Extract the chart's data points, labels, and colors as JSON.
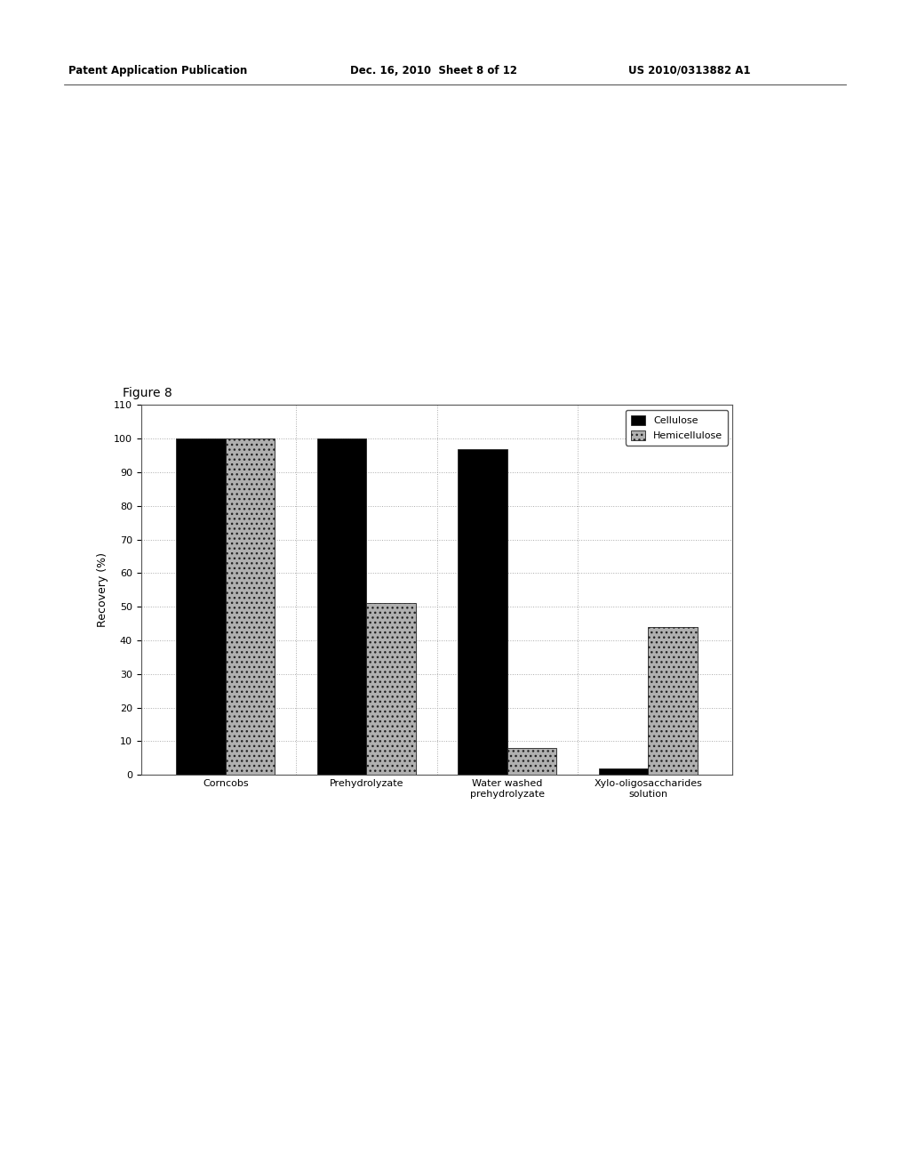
{
  "figure_label": "Figure 8",
  "categories": [
    "Corncobs",
    "Prehydrolyzate",
    "Water washed\nprehydrolyzate",
    "Xylo-oligosaccharides\nsolution"
  ],
  "cellulose_values": [
    100,
    100,
    97,
    2
  ],
  "hemicellulose_values": [
    100,
    51,
    8,
    44
  ],
  "cellulose_color": "#000000",
  "hemicellulose_color": "#b0b0b0",
  "hemicellulose_hatch": "...",
  "ylabel": "Recovery (%)",
  "ylim": [
    0,
    110
  ],
  "yticks": [
    0,
    10,
    20,
    30,
    40,
    50,
    60,
    70,
    80,
    90,
    100,
    110
  ],
  "legend_labels": [
    "Cellulose",
    "Hemicellulose"
  ],
  "bar_width": 0.35,
  "background_color": "#ffffff",
  "plot_bg_color": "#ffffff",
  "grid_color": "#aaaaaa",
  "border_color": "#555555",
  "figure_label_fontsize": 10,
  "axis_label_fontsize": 9,
  "tick_fontsize": 8,
  "legend_fontsize": 8,
  "header_left": "Patent Application Publication",
  "header_mid": "Dec. 16, 2010  Sheet 8 of 12",
  "header_right": "US 2010/0313882 A1"
}
